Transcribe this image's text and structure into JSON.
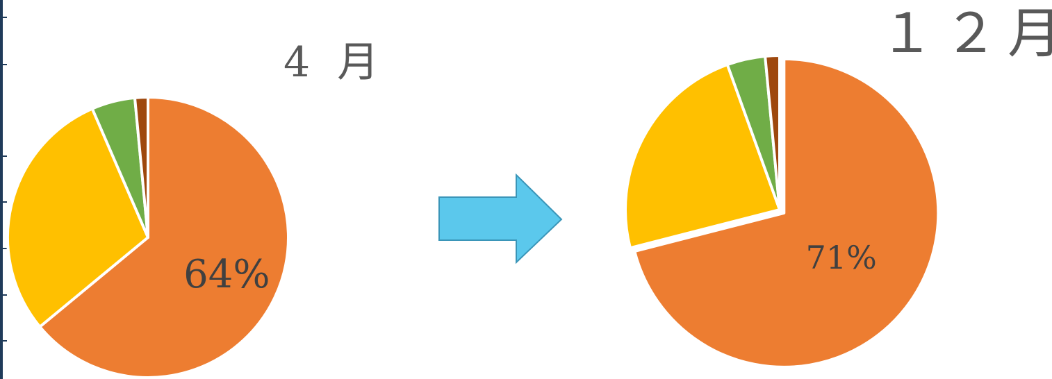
{
  "chart_data": [
    {
      "type": "pie",
      "title": "4 月",
      "slices": [
        {
          "value": 64,
          "color": "#ED7D31",
          "label": "64%"
        },
        {
          "value": 29.5,
          "color": "#FFC000"
        },
        {
          "value": 5,
          "color": "#70AD47"
        },
        {
          "value": 1.5,
          "color": "#9E480E"
        }
      ],
      "start_angle": 0,
      "direction": "clockwise"
    },
    {
      "type": "pie",
      "title": "１２月",
      "slices": [
        {
          "value": 71,
          "color": "#ED7D31",
          "label": "71%"
        },
        {
          "value": 23.5,
          "color": "#FFC000"
        },
        {
          "value": 4,
          "color": "#70AD47"
        },
        {
          "value": 1.5,
          "color": "#9E480E"
        }
      ],
      "start_angle": 0,
      "direction": "clockwise"
    }
  ],
  "arrow": {
    "direction": "right",
    "color": "#5BC8EC",
    "stroke": "#3A95B8"
  },
  "frame_color": "#1f3b5a"
}
